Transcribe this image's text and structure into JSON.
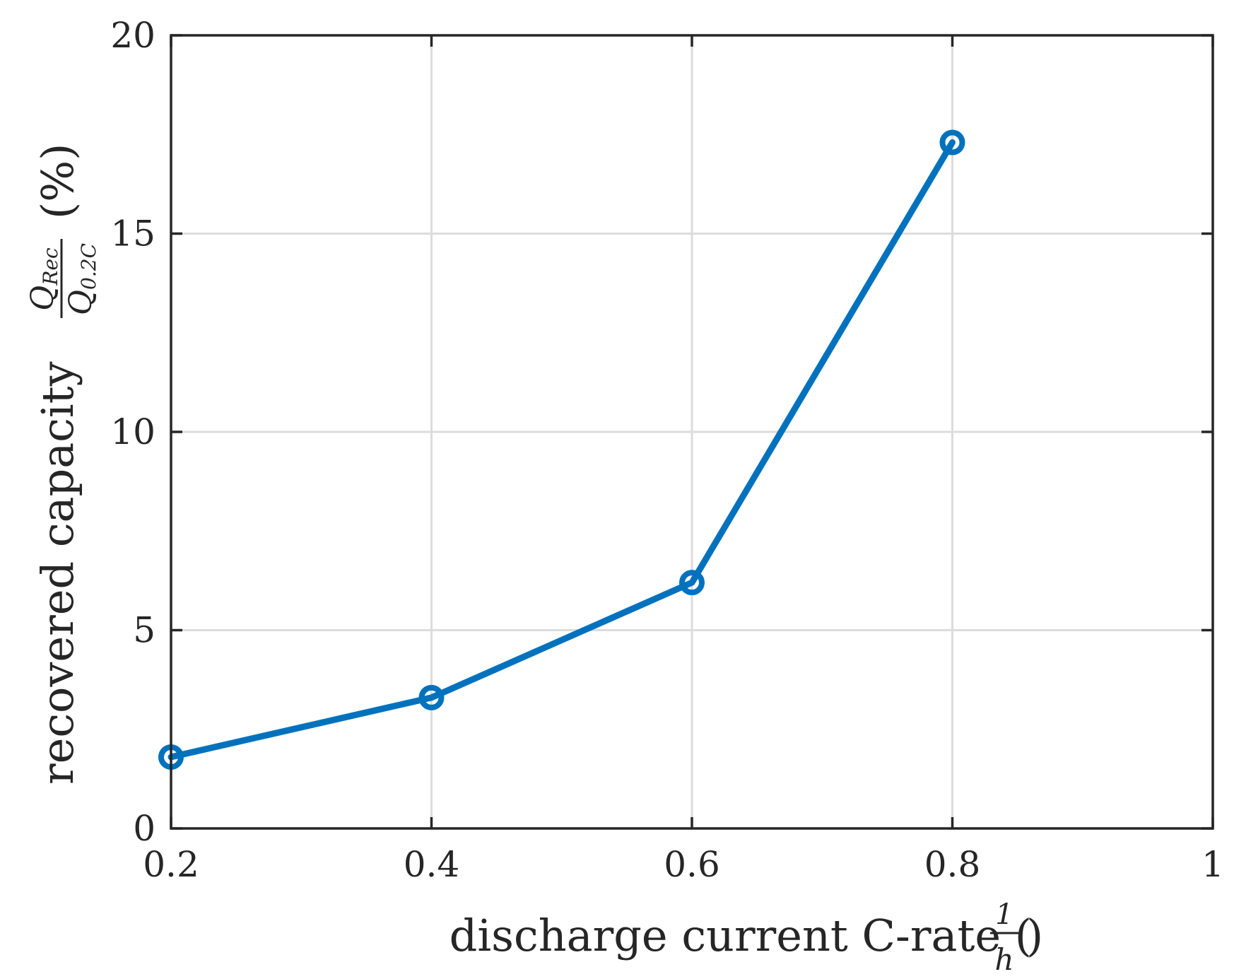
{
  "chart_data": {
    "type": "line",
    "x": [
      0.2,
      0.4,
      0.6,
      0.8
    ],
    "series": [
      {
        "values": [
          1.8,
          3.3,
          6.2,
          17.3
        ],
        "color": "#0072BD",
        "marker": "circle"
      }
    ],
    "xlabel": "discharge current C-rate (1/h)",
    "xlabel_parts": {
      "text": "discharge current C-rate (",
      "num": "1",
      "den": "h",
      "close": ")"
    },
    "ylabel": "recovered capacity Q_Rec / Q_0.2C (%)",
    "ylabel_parts": {
      "text": "recovered capacity",
      "num": "Q",
      "num_sub": "Rec",
      "den": "Q",
      "den_sub": "0.2C",
      "unit": "(%)"
    },
    "xlim": [
      0.2,
      1
    ],
    "ylim": [
      0,
      20
    ],
    "xticks": [
      0.2,
      0.4,
      0.6,
      0.8,
      1
    ],
    "xtick_labels": [
      "0.2",
      "0.4",
      "0.6",
      "0.8",
      "1"
    ],
    "yticks": [
      0,
      5,
      10,
      15,
      20
    ],
    "ytick_labels": [
      "0",
      "5",
      "10",
      "15",
      "20"
    ],
    "grid": true,
    "legend": "none",
    "colors": {
      "line": "#0072BD",
      "axes": "#262626",
      "grid": "#dcdcdc"
    }
  }
}
